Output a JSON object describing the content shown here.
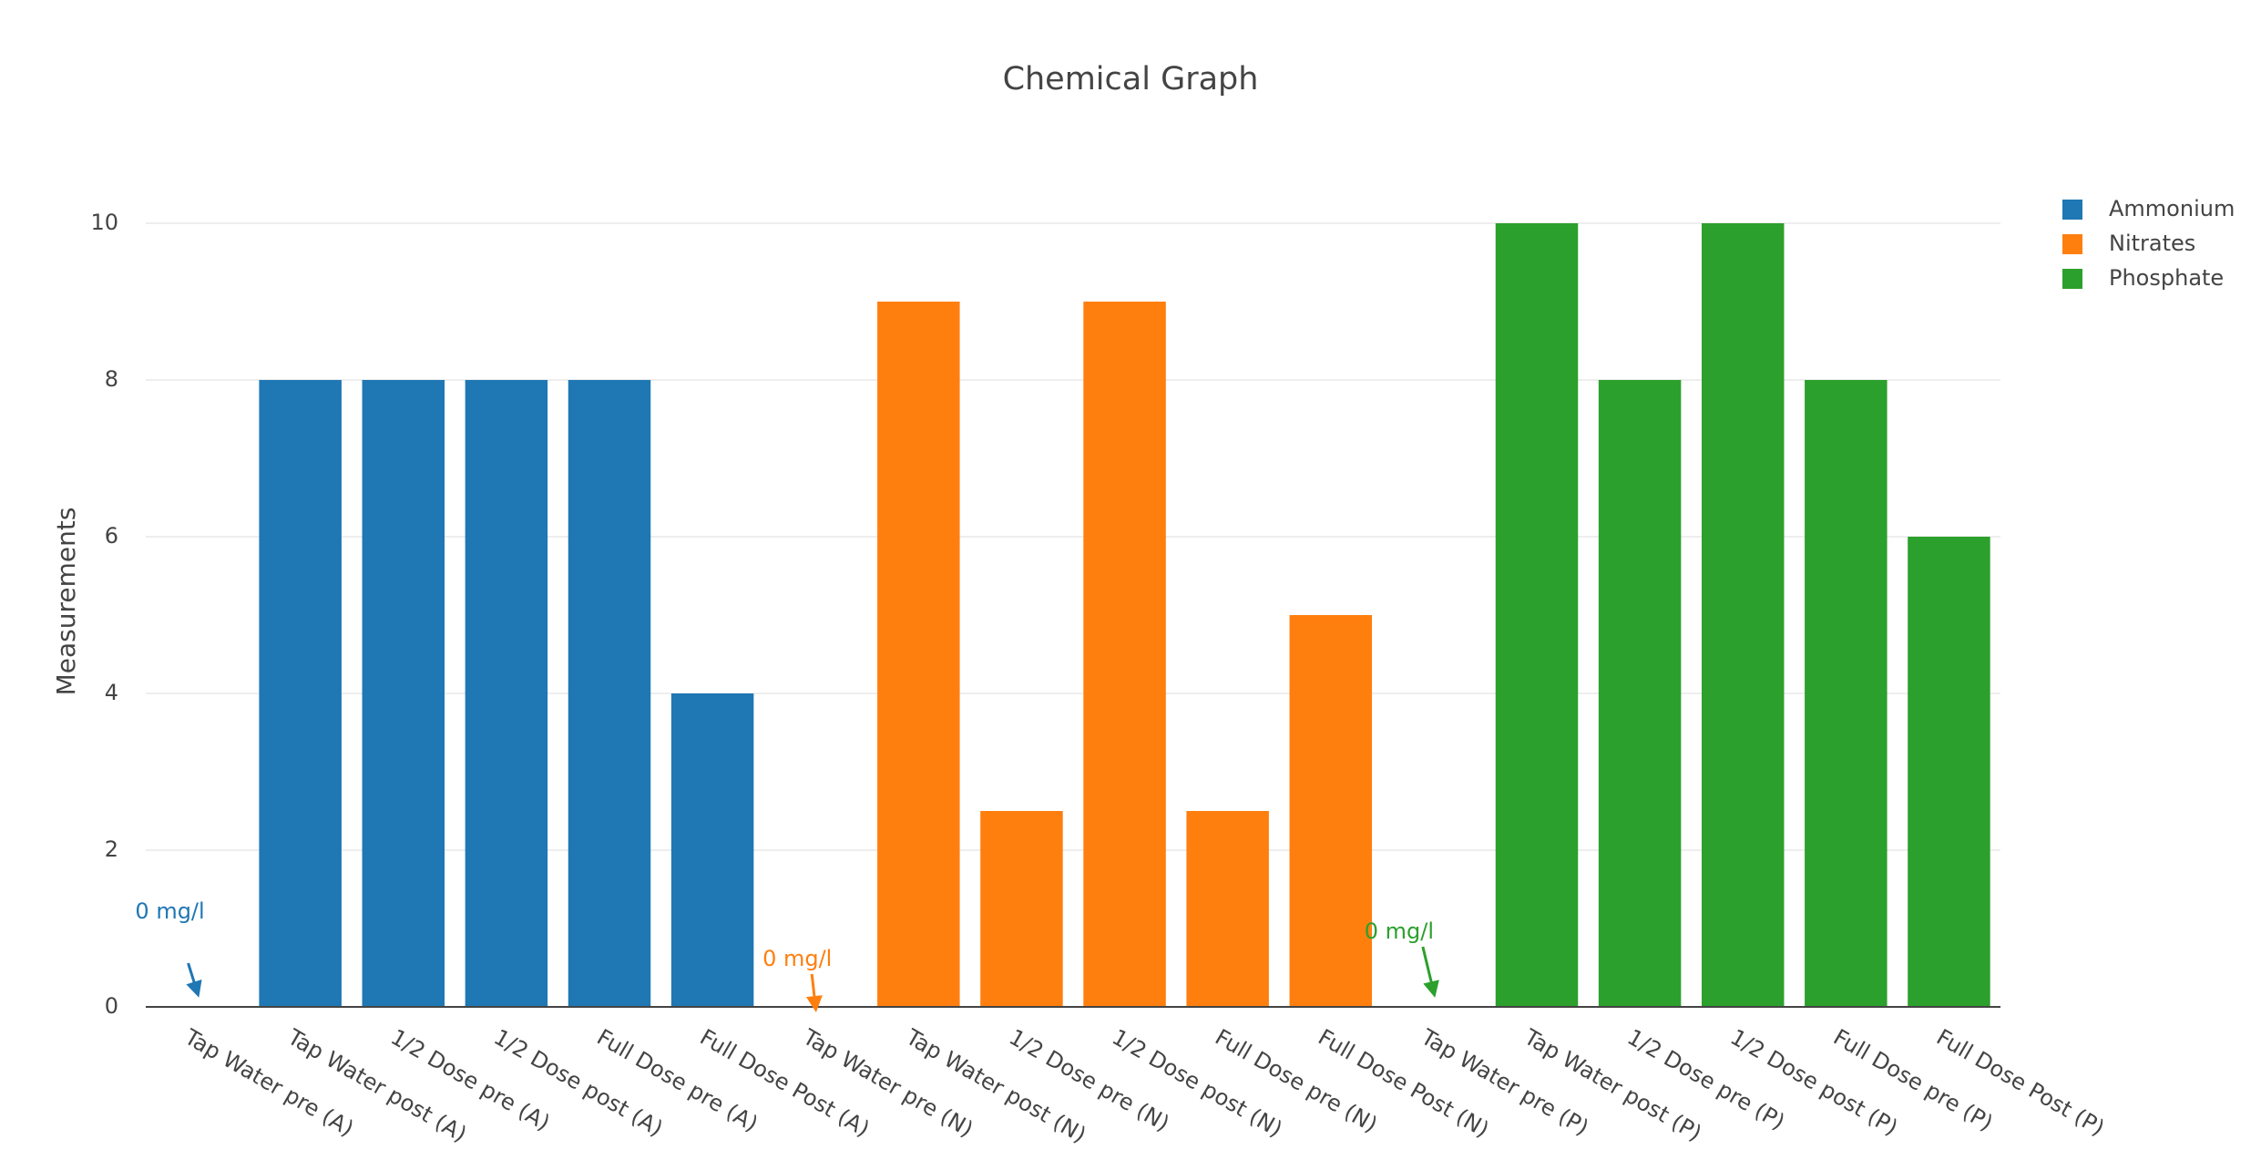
{
  "chart_data": {
    "type": "bar",
    "title": "Chemical Graph",
    "y_label": "Measurements",
    "categories": [
      "Tap Water pre (A)",
      "Tap Water post (A)",
      "1/2 Dose pre (A)",
      "1/2 Dose post (A)",
      "Full Dose pre (A)",
      "Full Dose Post (A)",
      "Tap Water pre (N)",
      "Tap Water post (N)",
      "1/2 Dose pre (N)",
      "1/2 Dose post (N)",
      "Full Dose pre (N)",
      "Full Dose Post (N)",
      "Tap Water pre (P)",
      "Tap Water post (P)",
      "1/2 Dose pre (P)",
      "1/2 Dose post (P)",
      "Full Dose pre (P)",
      "Full Dose Post (P)"
    ],
    "series": [
      {
        "name": "Ammonium",
        "color": "#1f77b4",
        "values": [
          0,
          8,
          8,
          8,
          8,
          4,
          null,
          null,
          null,
          null,
          null,
          null,
          null,
          null,
          null,
          null,
          null,
          null
        ]
      },
      {
        "name": "Nitrates",
        "color": "#ff7f0e",
        "values": [
          null,
          null,
          null,
          null,
          null,
          null,
          0,
          9,
          2.5,
          9,
          2.5,
          5,
          null,
          null,
          null,
          null,
          null,
          null
        ]
      },
      {
        "name": "Phosphate",
        "color": "#2ca02c",
        "values": [
          null,
          null,
          null,
          null,
          null,
          null,
          null,
          null,
          null,
          null,
          null,
          null,
          0,
          10,
          8,
          10,
          8,
          6
        ]
      }
    ],
    "annotations": [
      {
        "text": "0 mg/l",
        "x": "Tap Water pre (A)",
        "y": 0,
        "series": "Ammonium"
      },
      {
        "text": "0 mg/l",
        "x": "Tap Water pre (N)",
        "y": 0,
        "series": "Nitrates"
      },
      {
        "text": "0 mg/l",
        "x": "Tap Water pre (P)",
        "y": 0,
        "series": "Phosphate"
      }
    ],
    "ylim": [
      0,
      10
    ],
    "yticks": [
      0,
      2,
      4,
      6,
      8,
      10
    ],
    "grid": true,
    "legend": "top-right"
  }
}
